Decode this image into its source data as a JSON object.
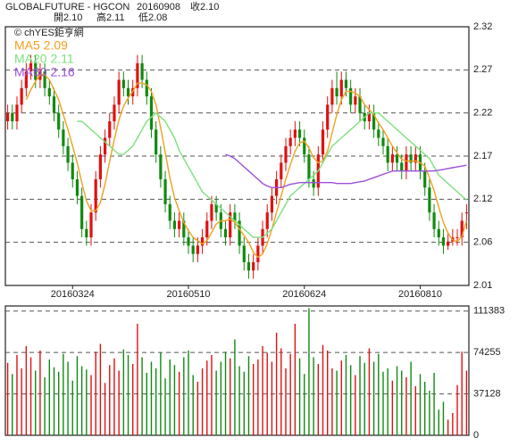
{
  "chart_data": {
    "type": "candlestick",
    "header": [
      "GLOBALFUTURE - HGCON",
      "20160908",
      "收2.10",
      "開2.10",
      "高2.11",
      "低2.08"
    ],
    "source": "© chYES鉅亨網",
    "up_color": "#e01010",
    "down_color": "#108a10",
    "categories": [
      null,
      null,
      null,
      null,
      null,
      null,
      null,
      null,
      null,
      null,
      null,
      null,
      null,
      null,
      "20160324",
      null,
      null,
      null,
      null,
      null,
      null,
      null,
      null,
      null,
      null,
      null,
      null,
      null,
      null,
      null,
      null,
      null,
      null,
      null,
      null,
      null,
      null,
      null,
      null,
      "20160510",
      null,
      null,
      null,
      null,
      null,
      null,
      null,
      null,
      null,
      null,
      null,
      null,
      null,
      null,
      null,
      null,
      null,
      null,
      null,
      null,
      null,
      null,
      null,
      null,
      "20160624",
      null,
      null,
      null,
      null,
      null,
      null,
      null,
      null,
      null,
      null,
      null,
      null,
      null,
      null,
      null,
      null,
      null,
      null,
      null,
      null,
      null,
      null,
      null,
      null,
      "20160810",
      null,
      null,
      null,
      null,
      null,
      null,
      null,
      null,
      null,
      null
    ],
    "ohlc": [
      [
        2.21,
        2.23,
        2.2,
        2.22
      ],
      [
        2.22,
        2.23,
        2.2,
        2.21
      ],
      [
        2.21,
        2.24,
        2.2,
        2.23
      ],
      [
        2.23,
        2.26,
        2.22,
        2.25
      ],
      [
        2.25,
        2.28,
        2.24,
        2.27
      ],
      [
        2.27,
        2.29,
        2.26,
        2.28
      ],
      [
        2.28,
        2.29,
        2.25,
        2.26
      ],
      [
        2.26,
        2.28,
        2.25,
        2.27
      ],
      [
        2.27,
        2.28,
        2.24,
        2.25
      ],
      [
        2.25,
        2.26,
        2.23,
        2.24
      ],
      [
        2.24,
        2.25,
        2.21,
        2.22
      ],
      [
        2.22,
        2.23,
        2.19,
        2.2
      ],
      [
        2.2,
        2.21,
        2.17,
        2.18
      ],
      [
        2.18,
        2.19,
        2.15,
        2.16
      ],
      [
        2.16,
        2.17,
        2.13,
        2.14
      ],
      [
        2.14,
        2.15,
        2.11,
        2.12
      ],
      [
        2.12,
        2.13,
        2.07,
        2.08
      ],
      [
        2.08,
        2.09,
        2.06,
        2.07
      ],
      [
        2.07,
        2.11,
        2.06,
        2.1
      ],
      [
        2.1,
        2.15,
        2.09,
        2.14
      ],
      [
        2.14,
        2.18,
        2.13,
        2.17
      ],
      [
        2.17,
        2.2,
        2.16,
        2.19
      ],
      [
        2.19,
        2.22,
        2.18,
        2.21
      ],
      [
        2.21,
        2.24,
        2.2,
        2.23
      ],
      [
        2.23,
        2.27,
        2.22,
        2.26
      ],
      [
        2.26,
        2.27,
        2.24,
        2.25
      ],
      [
        2.25,
        2.26,
        2.23,
        2.24
      ],
      [
        2.24,
        2.26,
        2.23,
        2.25
      ],
      [
        2.25,
        2.29,
        2.24,
        2.28
      ],
      [
        2.28,
        2.29,
        2.25,
        2.26
      ],
      [
        2.26,
        2.27,
        2.23,
        2.24
      ],
      [
        2.24,
        2.25,
        2.19,
        2.2
      ],
      [
        2.2,
        2.21,
        2.16,
        2.17
      ],
      [
        2.17,
        2.18,
        2.13,
        2.14
      ],
      [
        2.14,
        2.15,
        2.1,
        2.11
      ],
      [
        2.11,
        2.12,
        2.08,
        2.09
      ],
      [
        2.09,
        2.1,
        2.07,
        2.08
      ],
      [
        2.08,
        2.1,
        2.07,
        2.09
      ],
      [
        2.09,
        2.1,
        2.06,
        2.07
      ],
      [
        2.07,
        2.08,
        2.05,
        2.06
      ],
      [
        2.06,
        2.07,
        2.04,
        2.05
      ],
      [
        2.05,
        2.07,
        2.04,
        2.06
      ],
      [
        2.06,
        2.08,
        2.05,
        2.07
      ],
      [
        2.07,
        2.1,
        2.06,
        2.09
      ],
      [
        2.09,
        2.12,
        2.08,
        2.11
      ],
      [
        2.11,
        2.12,
        2.09,
        2.1
      ],
      [
        2.1,
        2.11,
        2.07,
        2.08
      ],
      [
        2.08,
        2.09,
        2.06,
        2.07
      ],
      [
        2.07,
        2.11,
        2.06,
        2.1
      ],
      [
        2.1,
        2.11,
        2.08,
        2.09
      ],
      [
        2.09,
        2.1,
        2.05,
        2.06
      ],
      [
        2.06,
        2.07,
        2.03,
        2.04
      ],
      [
        2.04,
        2.05,
        2.02,
        2.03
      ],
      [
        2.03,
        2.05,
        2.02,
        2.04
      ],
      [
        2.04,
        2.07,
        2.03,
        2.06
      ],
      [
        2.06,
        2.09,
        2.05,
        2.08
      ],
      [
        2.08,
        2.11,
        2.07,
        2.1
      ],
      [
        2.1,
        2.13,
        2.09,
        2.12
      ],
      [
        2.12,
        2.15,
        2.11,
        2.14
      ],
      [
        2.14,
        2.17,
        2.13,
        2.16
      ],
      [
        2.16,
        2.19,
        2.15,
        2.18
      ],
      [
        2.18,
        2.2,
        2.17,
        2.19
      ],
      [
        2.19,
        2.21,
        2.18,
        2.2
      ],
      [
        2.2,
        2.21,
        2.18,
        2.19
      ],
      [
        2.19,
        2.2,
        2.16,
        2.17
      ],
      [
        2.17,
        2.18,
        2.13,
        2.14
      ],
      [
        2.14,
        2.15,
        2.12,
        2.13
      ],
      [
        2.13,
        2.18,
        2.12,
        2.17
      ],
      [
        2.17,
        2.21,
        2.16,
        2.2
      ],
      [
        2.2,
        2.24,
        2.19,
        2.23
      ],
      [
        2.23,
        2.26,
        2.22,
        2.25
      ],
      [
        2.25,
        2.27,
        2.23,
        2.24
      ],
      [
        2.24,
        2.27,
        2.23,
        2.26
      ],
      [
        2.26,
        2.27,
        2.24,
        2.25
      ],
      [
        2.25,
        2.26,
        2.22,
        2.23
      ],
      [
        2.23,
        2.25,
        2.22,
        2.24
      ],
      [
        2.24,
        2.25,
        2.21,
        2.22
      ],
      [
        2.22,
        2.23,
        2.2,
        2.21
      ],
      [
        2.21,
        2.23,
        2.2,
        2.22
      ],
      [
        2.22,
        2.23,
        2.19,
        2.2
      ],
      [
        2.2,
        2.21,
        2.18,
        2.19
      ],
      [
        2.19,
        2.2,
        2.17,
        2.18
      ],
      [
        2.18,
        2.19,
        2.15,
        2.16
      ],
      [
        2.16,
        2.18,
        2.15,
        2.17
      ],
      [
        2.17,
        2.18,
        2.15,
        2.16
      ],
      [
        2.16,
        2.17,
        2.14,
        2.15
      ],
      [
        2.15,
        2.18,
        2.14,
        2.17
      ],
      [
        2.17,
        2.18,
        2.15,
        2.16
      ],
      [
        2.16,
        2.18,
        2.15,
        2.17
      ],
      [
        2.17,
        2.18,
        2.14,
        2.15
      ],
      [
        2.15,
        2.16,
        2.12,
        2.13
      ],
      [
        2.13,
        2.14,
        2.09,
        2.1
      ],
      [
        2.1,
        2.11,
        2.07,
        2.08
      ],
      [
        2.08,
        2.09,
        2.06,
        2.07
      ],
      [
        2.07,
        2.08,
        2.05,
        2.06
      ],
      [
        2.06,
        2.075,
        2.055,
        2.065
      ],
      [
        2.065,
        2.08,
        2.06,
        2.07
      ],
      [
        2.07,
        2.08,
        2.06,
        2.07
      ],
      [
        2.07,
        2.1,
        2.06,
        2.09
      ],
      [
        2.1,
        2.11,
        2.08,
        2.1
      ]
    ],
    "series": [
      {
        "name": "MA5 2.09",
        "color": "#f0a020",
        "values": [
          null,
          null,
          null,
          null,
          2.236,
          2.248,
          2.258,
          2.266,
          2.266,
          2.26,
          2.248,
          2.236,
          2.218,
          2.2,
          2.18,
          2.16,
          2.136,
          2.114,
          2.102,
          2.102,
          2.112,
          2.134,
          2.162,
          2.188,
          2.212,
          2.228,
          2.238,
          2.246,
          2.256,
          2.256,
          2.254,
          2.246,
          2.23,
          2.202,
          2.172,
          2.142,
          2.118,
          2.102,
          2.088,
          2.078,
          2.07,
          2.066,
          2.062,
          2.066,
          2.076,
          2.086,
          2.09,
          2.09,
          2.092,
          2.088,
          2.08,
          2.072,
          2.064,
          2.052,
          2.046,
          2.05,
          2.062,
          2.08,
          2.1,
          2.12,
          2.14,
          2.158,
          2.174,
          2.184,
          2.186,
          2.178,
          2.166,
          2.16,
          2.162,
          2.174,
          2.196,
          2.218,
          2.236,
          2.246,
          2.246,
          2.244,
          2.24,
          2.23,
          2.224,
          2.218,
          2.208,
          2.2,
          2.19,
          2.18,
          2.172,
          2.164,
          2.162,
          2.162,
          2.162,
          2.16,
          2.156,
          2.142,
          2.126,
          2.106,
          2.088,
          2.075,
          2.067,
          2.065,
          2.071,
          2.09
        ]
      },
      {
        "name": "MA20 2.11",
        "color": "#7ee07e",
        "values": [
          null,
          null,
          null,
          null,
          null,
          null,
          null,
          null,
          null,
          null,
          null,
          null,
          null,
          null,
          null,
          2.21,
          2.21,
          2.205,
          2.2,
          2.195,
          2.19,
          2.185,
          2.18,
          2.175,
          2.17,
          2.17,
          2.175,
          2.18,
          2.19,
          2.2,
          2.21,
          2.215,
          2.22,
          2.215,
          2.21,
          2.2,
          2.19,
          2.175,
          2.165,
          2.155,
          2.145,
          2.135,
          2.125,
          2.12,
          2.115,
          2.11,
          2.105,
          2.1,
          2.095,
          2.09,
          2.085,
          2.08,
          2.075,
          2.07,
          2.07,
          2.07,
          2.075,
          2.08,
          2.09,
          2.1,
          2.11,
          2.12,
          2.125,
          2.13,
          2.135,
          2.14,
          2.145,
          2.15,
          2.16,
          2.17,
          2.18,
          2.185,
          2.19,
          2.195,
          2.2,
          2.205,
          2.21,
          2.215,
          2.22,
          2.22,
          2.22,
          2.215,
          2.21,
          2.205,
          2.2,
          2.195,
          2.19,
          2.185,
          2.18,
          2.175,
          2.17,
          2.165,
          2.155,
          2.145,
          2.14,
          2.135,
          2.13,
          2.125,
          2.12,
          2.115
        ]
      },
      {
        "name": "MA60 2.16",
        "color": "#9b4fd8",
        "values": [
          null,
          null,
          null,
          null,
          null,
          null,
          null,
          null,
          null,
          null,
          null,
          null,
          null,
          null,
          null,
          null,
          null,
          null,
          null,
          null,
          null,
          null,
          null,
          null,
          null,
          null,
          null,
          null,
          null,
          null,
          null,
          null,
          null,
          null,
          null,
          null,
          null,
          null,
          null,
          null,
          null,
          null,
          null,
          null,
          null,
          null,
          null,
          2.17,
          2.168,
          2.165,
          2.16,
          2.155,
          2.15,
          2.145,
          2.14,
          2.135,
          2.132,
          2.13,
          2.13,
          2.13,
          2.132,
          2.134,
          2.135,
          2.136,
          2.136,
          2.136,
          2.136,
          2.136,
          2.136,
          2.136,
          2.136,
          2.135,
          2.135,
          2.135,
          2.135,
          2.136,
          2.137,
          2.138,
          2.14,
          2.142,
          2.144,
          2.146,
          2.148,
          2.15,
          2.15,
          2.15,
          2.15,
          2.15,
          2.15,
          2.15,
          2.15,
          2.15,
          2.15,
          2.151,
          2.152,
          2.153,
          2.154,
          2.155,
          2.156,
          2.157
        ]
      }
    ],
    "ylim": [
      2.012,
      2.324
    ],
    "yticks": [
      {
        "value": 2.012,
        "label": "2.01"
      },
      {
        "value": 2.064,
        "label": "2.06"
      },
      {
        "value": 2.116,
        "label": "2.12"
      },
      {
        "value": 2.168,
        "label": "2.17"
      },
      {
        "value": 2.22,
        "label": "2.22"
      },
      {
        "value": 2.272,
        "label": "2.27"
      },
      {
        "value": 2.324,
        "label": "2.32"
      }
    ],
    "volume": [
      65000,
      55000,
      72000,
      60000,
      80000,
      70000,
      58000,
      76000,
      52000,
      68000,
      61000,
      57000,
      73000,
      66000,
      49000,
      71000,
      62000,
      59000,
      54000,
      75000,
      82000,
      47000,
      63000,
      69000,
      58000,
      77000,
      72000,
      64000,
      100000,
      70000,
      56000,
      66000,
      60000,
      74000,
      51000,
      68000,
      63000,
      57000,
      70000,
      76000,
      54000,
      48000,
      60000,
      67000,
      72000,
      58000,
      66000,
      75000,
      69000,
      86000,
      62000,
      57000,
      71000,
      64000,
      68000,
      80000,
      74000,
      66000,
      92000,
      78000,
      60000,
      73000,
      100000,
      69000,
      55000,
      114000,
      70000,
      64000,
      81000,
      76000,
      60000,
      58000,
      67000,
      72000,
      63000,
      54000,
      71000,
      65000,
      78000,
      66000,
      73000,
      57000,
      60000,
      49000,
      62000,
      58000,
      52000,
      66000,
      44000,
      55000,
      48000,
      40000,
      56000,
      23000,
      30000,
      14000,
      20000,
      45000,
      75000,
      58000
    ],
    "vlim": [
      0,
      116000
    ],
    "vticks": [
      0,
      37128,
      74255,
      111383
    ]
  }
}
